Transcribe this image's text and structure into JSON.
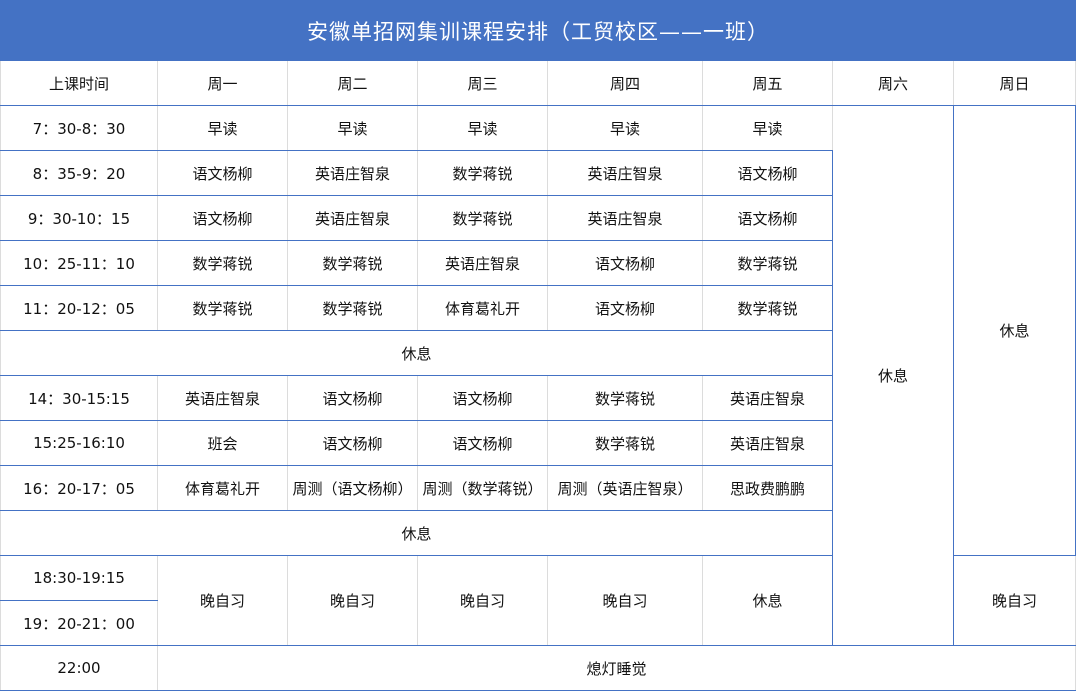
{
  "title": "安徽单招网集训课程安排（工贸校区——一班）",
  "header": [
    "上课时间",
    "周一",
    "周二",
    "周三",
    "周四",
    "周五",
    "周六",
    "周日"
  ],
  "rows": [
    {
      "time": "7：30-8：30",
      "cells": [
        "早读",
        "早读",
        "早读",
        "早读",
        "早读"
      ]
    },
    {
      "time": "8：35-9：20",
      "cells": [
        "语文杨柳",
        "英语庄智泉",
        "数学蒋锐",
        "英语庄智泉",
        "语文杨柳"
      ]
    },
    {
      "time": "9：30-10：15",
      "cells": [
        "语文杨柳",
        "英语庄智泉",
        "数学蒋锐",
        "英语庄智泉",
        "语文杨柳"
      ]
    },
    {
      "time": "10：25-11：10",
      "cells": [
        "数学蒋锐",
        "数学蒋锐",
        "英语庄智泉",
        "语文杨柳",
        "数学蒋锐"
      ]
    },
    {
      "time": "11：20-12：05",
      "cells": [
        "数学蒋锐",
        "数学蒋锐",
        "体育葛礼开",
        "语文杨柳",
        "数学蒋锐"
      ]
    },
    {
      "time": "14：30-15:15",
      "cells": [
        "英语庄智泉",
        "语文杨柳",
        "语文杨柳",
        "数学蒋锐",
        "英语庄智泉"
      ]
    },
    {
      "time": "15:25-16:10",
      "cells": [
        "班会",
        "语文杨柳",
        "语文杨柳",
        "数学蒋锐",
        "英语庄智泉"
      ]
    },
    {
      "time": "16：20-17：05",
      "cells": [
        "体育葛礼开",
        "周测（语文杨柳）",
        "周测（数学蒋锐）",
        "周测（英语庄智泉）",
        "思政费鹏鹏"
      ]
    }
  ],
  "noon_break": "休息",
  "evening_break": "休息",
  "saturday": "休息",
  "sunday_day": "休息",
  "evening": {
    "times": [
      "18:30-19:15",
      "19：20-21：00"
    ],
    "cells": [
      "晚自习",
      "晚自习",
      "晚自习",
      "晚自习",
      "休息"
    ],
    "sunday": "晚自习"
  },
  "night": {
    "time": "22:00",
    "text": "熄灯睡觉"
  },
  "colors": {
    "title_bg": "#4472c4",
    "row_line": "#4472c4",
    "col_line": "#dcdcdc"
  }
}
